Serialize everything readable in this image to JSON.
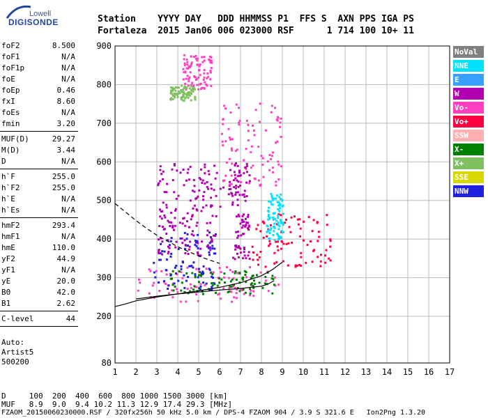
{
  "logo": {
    "top": "Lowell",
    "bottom": "DIGISONDE"
  },
  "header": {
    "row1": "Station    YYYY DAY   DDD HHMMSS P1  FFS S  AXN PPS IGA PS",
    "row2": "Fortaleza  2015 Jan06 006 023000 RSF      1 714 100 10+ 11"
  },
  "params": [
    {
      "label": "foF2",
      "value": "8.500"
    },
    {
      "label": "foF1",
      "value": "N/A"
    },
    {
      "label": "foF1p",
      "value": "N/A"
    },
    {
      "label": "foE",
      "value": "N/A"
    },
    {
      "label": "foEp",
      "value": "0.46"
    },
    {
      "label": "fxI",
      "value": "8.60"
    },
    {
      "label": "foEs",
      "value": "N/A"
    },
    {
      "label": "fmin",
      "value": "3.20"
    },
    {
      "sep": true
    },
    {
      "label": "MUF(D)",
      "value": "29.27"
    },
    {
      "label": "M(D)",
      "value": "3.44"
    },
    {
      "label": "D",
      "value": "N/A"
    },
    {
      "sep": true
    },
    {
      "label": "h`F",
      "value": "255.0"
    },
    {
      "label": "h`F2",
      "value": "255.0"
    },
    {
      "label": "h`E",
      "value": "N/A"
    },
    {
      "label": "h`Es",
      "value": "N/A"
    },
    {
      "sep": true
    },
    {
      "label": "hmF2",
      "value": "293.4"
    },
    {
      "label": "hmF1",
      "value": "N/A"
    },
    {
      "label": "hmE",
      "value": "110.0"
    },
    {
      "label": "yF2",
      "value": "44.9"
    },
    {
      "label": "yF1",
      "value": "N/A"
    },
    {
      "label": "yE",
      "value": "20.0"
    },
    {
      "label": "B0",
      "value": "42.0"
    },
    {
      "label": "B1",
      "value": "2.62"
    },
    {
      "sep": true
    },
    {
      "label": "C-level",
      "value": "44"
    },
    {
      "sep": true
    }
  ],
  "auto": {
    "line1": "Auto:",
    "line2": "Artist5",
    "line3": "500200"
  },
  "legend": [
    {
      "label": "NoVal",
      "color": "#808080"
    },
    {
      "label": "NNE",
      "color": "#00e0ff"
    },
    {
      "label": "E",
      "color": "#3aa0ff"
    },
    {
      "label": "W",
      "color": "#b000b0"
    },
    {
      "label": "Vo-",
      "color": "#ff40c0"
    },
    {
      "label": "Vo+",
      "color": "#ff0040"
    },
    {
      "label": "SSW",
      "color": "#ffb0b0"
    },
    {
      "label": "X-",
      "color": "#008000"
    },
    {
      "label": "X+",
      "color": "#80c060"
    },
    {
      "label": "SSE",
      "color": "#d8d800"
    },
    {
      "label": "NNW",
      "color": "#2020e0"
    }
  ],
  "chart_data": {
    "type": "scatter",
    "x_ticks": [
      1,
      2,
      3,
      4,
      5,
      6,
      7,
      8,
      9,
      10,
      11,
      12,
      13,
      14,
      15,
      16,
      17
    ],
    "y_ticks": [
      80,
      200,
      300,
      400,
      500,
      600,
      700,
      800,
      900
    ],
    "xlim": [
      1,
      17
    ],
    "grid": true,
    "traces": [
      {
        "x": [
          1.0,
          1.5,
          2.0,
          2.5,
          3.0,
          3.5,
          4.0,
          4.5,
          5.0,
          5.5,
          6.0
        ],
        "y": [
          492,
          470,
          448,
          428,
          410,
          395,
          380,
          368,
          356,
          346,
          337
        ]
      },
      {
        "x": [
          2.0,
          3.0,
          4.0,
          5.0,
          6.0,
          7.0,
          7.5,
          8.0,
          8.3,
          8.6
        ],
        "y": [
          245,
          252,
          258,
          263,
          268,
          272,
          275,
          278,
          283,
          292
        ]
      },
      {
        "x": [
          1.0,
          1.5,
          2.0,
          3.0,
          4.0,
          5.0,
          6.0,
          7.0,
          8.0,
          8.5,
          9.0
        ],
        "y": [
          225,
          232,
          240,
          250,
          258,
          266,
          275,
          287,
          305,
          320,
          340
        ]
      }
    ],
    "clusters": [
      {
        "color": "#ff40c0",
        "x": [
          2.0,
          8.8
        ],
        "y": [
          240,
          330
        ]
      },
      {
        "color": "#008000",
        "x": [
          3.5,
          8.6
        ],
        "y": [
          260,
          320
        ]
      },
      {
        "color": "#ff0040",
        "x": [
          7.5,
          11.4
        ],
        "y": [
          330,
          470
        ]
      },
      {
        "color": "#2020e0",
        "x": [
          2.8,
          5.8
        ],
        "y": [
          270,
          420
        ]
      },
      {
        "color": "#b000b0",
        "x": [
          3.0,
          5.8
        ],
        "y": [
          360,
          490
        ]
      },
      {
        "color": "#b000b0",
        "x": [
          3.0,
          6.8
        ],
        "y": [
          480,
          600
        ]
      },
      {
        "color": "#ff40c0",
        "x": [
          6.0,
          9.0
        ],
        "y": [
          540,
          760
        ]
      },
      {
        "color": "#00e0ff",
        "x": [
          8.2,
          9.0
        ],
        "y": [
          400,
          520
        ]
      },
      {
        "color": "#b000b0",
        "x": [
          6.6,
          7.4
        ],
        "y": [
          350,
          600
        ]
      },
      {
        "color": "#ff40c0",
        "x": [
          4.2,
          5.6
        ],
        "y": [
          790,
          880
        ]
      },
      {
        "color": "#80c060",
        "x": [
          3.6,
          4.8
        ],
        "y": [
          760,
          800
        ]
      }
    ]
  },
  "footer": {
    "d_row": "D     100  200  400  600  800 1000 1500 3000 [km]",
    "muf_row": "MUF   8.9  9.0  9.4 10.2 11.3 12.9 17.4 29.3 [MHz]",
    "file_row": "FZAOM_20150060230000.RSF / 320fx256h 50 kHz 5.0 km / DPS-4 FZAOM 904 / 3.9 S 321.6 E   Ion2Png 1.3.20"
  }
}
